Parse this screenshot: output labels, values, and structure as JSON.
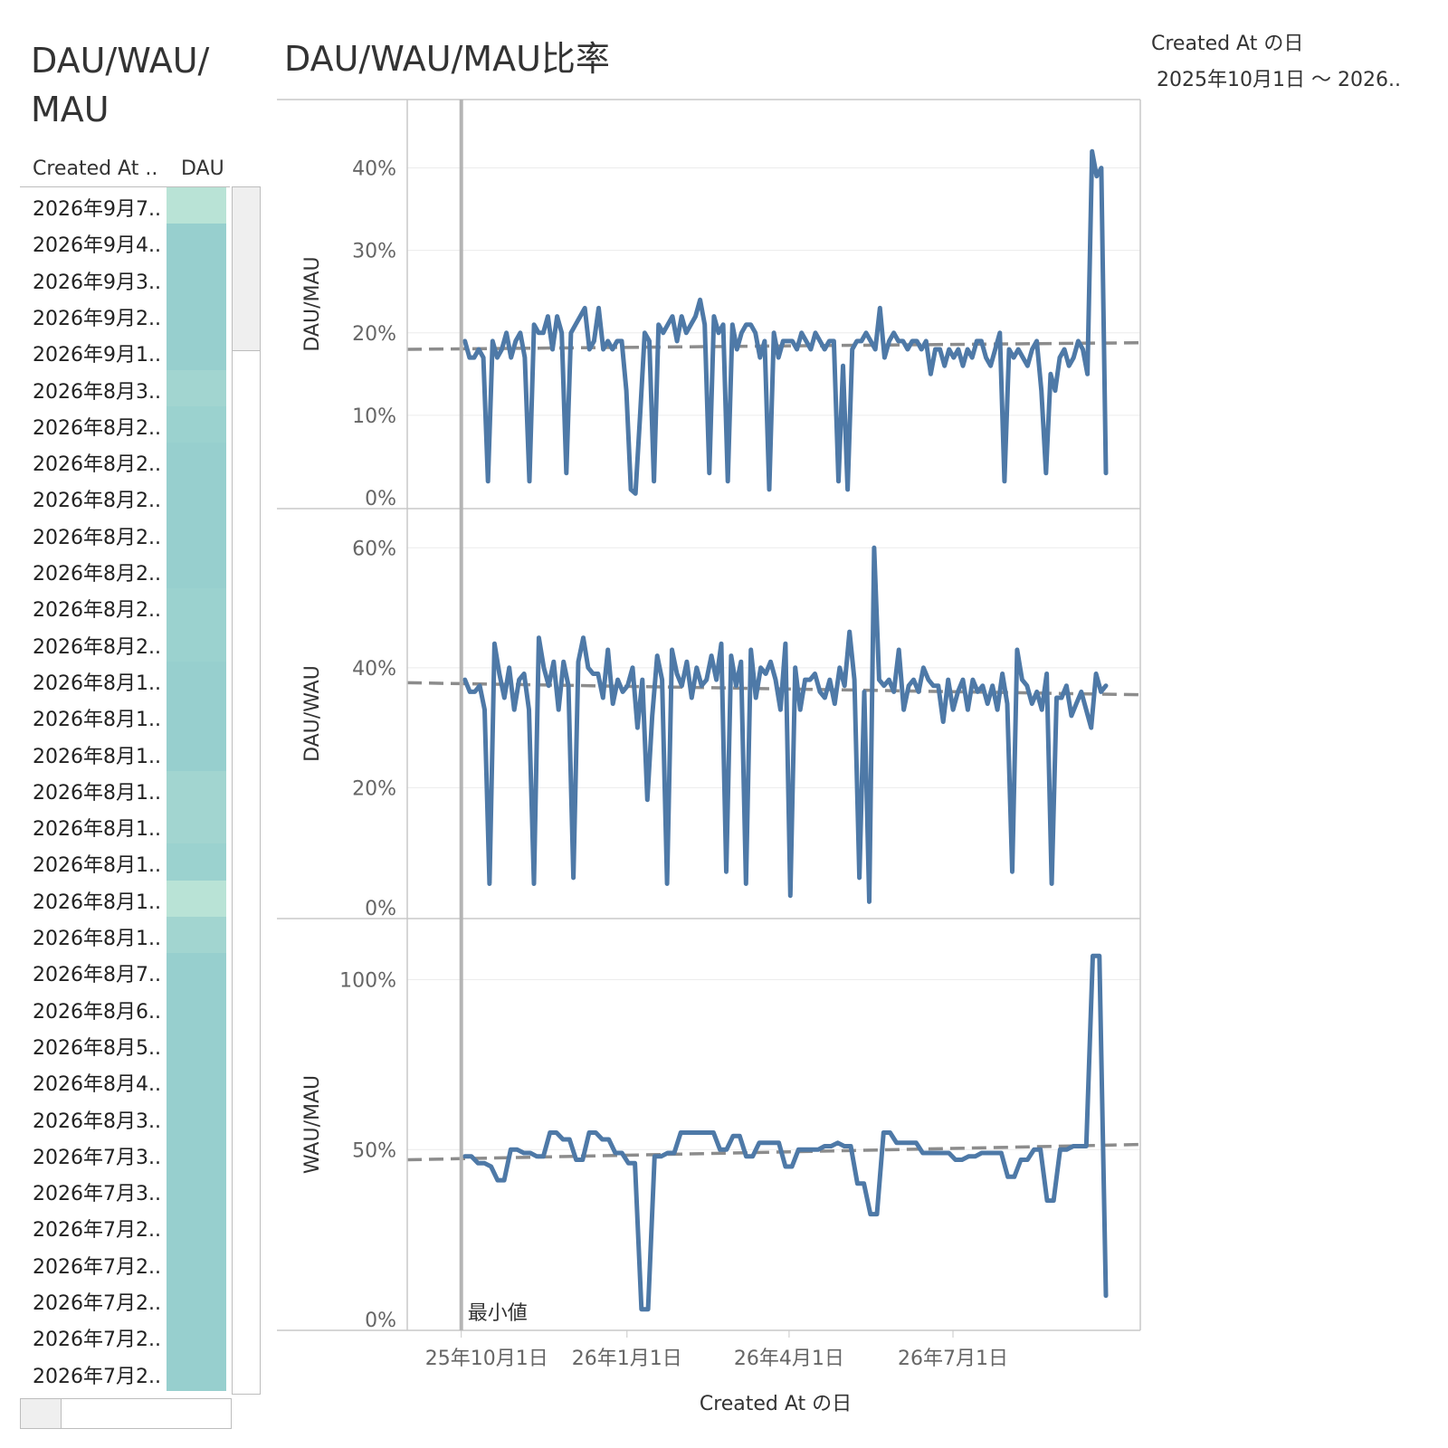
{
  "left_sheet": {
    "title_line1": "DAU/WAU/",
    "title_line2": "MAU",
    "col_date": "Created At ..",
    "col_dau": "DAU",
    "rows": [
      {
        "label": "2026年9月7..",
        "shade": "#b9e3d6"
      },
      {
        "label": "2026年9月4..",
        "shade": "#97cfce"
      },
      {
        "label": "2026年9月3..",
        "shade": "#97cfce"
      },
      {
        "label": "2026年9月2..",
        "shade": "#97cfce"
      },
      {
        "label": "2026年9月1..",
        "shade": "#97cfce"
      },
      {
        "label": "2026年8月3..",
        "shade": "#a2d5d0"
      },
      {
        "label": "2026年8月2..",
        "shade": "#9bd2cf"
      },
      {
        "label": "2026年8月2..",
        "shade": "#97cfce"
      },
      {
        "label": "2026年8月2..",
        "shade": "#97cfce"
      },
      {
        "label": "2026年8月2..",
        "shade": "#97cfce"
      },
      {
        "label": "2026年8月2..",
        "shade": "#97cfce"
      },
      {
        "label": "2026年8月2..",
        "shade": "#9bd2cf"
      },
      {
        "label": "2026年8月2..",
        "shade": "#9bd2cf"
      },
      {
        "label": "2026年8月1..",
        "shade": "#97cfce"
      },
      {
        "label": "2026年8月1..",
        "shade": "#97cfce"
      },
      {
        "label": "2026年8月1..",
        "shade": "#97cfce"
      },
      {
        "label": "2026年8月1..",
        "shade": "#a2d5d0"
      },
      {
        "label": "2026年8月1..",
        "shade": "#a2d5d0"
      },
      {
        "label": "2026年8月1..",
        "shade": "#9bd2cf"
      },
      {
        "label": "2026年8月1..",
        "shade": "#b9e3d6"
      },
      {
        "label": "2026年8月1..",
        "shade": "#a2d5d0"
      },
      {
        "label": "2026年8月7..",
        "shade": "#97cfce"
      },
      {
        "label": "2026年8月6..",
        "shade": "#97cfce"
      },
      {
        "label": "2026年8月5..",
        "shade": "#97cfce"
      },
      {
        "label": "2026年8月4..",
        "shade": "#97cfce"
      },
      {
        "label": "2026年8月3..",
        "shade": "#97cfce"
      },
      {
        "label": "2026年7月3..",
        "shade": "#97cfce"
      },
      {
        "label": "2026年7月3..",
        "shade": "#97cfce"
      },
      {
        "label": "2026年7月2..",
        "shade": "#97cfce"
      },
      {
        "label": "2026年7月2..",
        "shade": "#97cfce"
      },
      {
        "label": "2026年7月2..",
        "shade": "#97cfce"
      },
      {
        "label": "2026年7月2..",
        "shade": "#97cfce"
      },
      {
        "label": "2026年7月2..",
        "shade": "#97cfce"
      }
    ]
  },
  "filter": {
    "title": "Created At の日",
    "value": "2025年10月1日 〜 2026.."
  },
  "chart_data": {
    "type": "line",
    "title": "DAU/WAU/MAU比率",
    "xlabel": "Created At の日",
    "x_ticks": [
      "25年10月1日",
      "26年1月1日",
      "26年4月1日",
      "26年7月1日"
    ],
    "x_range": [
      "2025-09-01",
      "2026-10-13"
    ],
    "line_color": "#4e79a7",
    "trend_color": "#8c8c8c",
    "reference_line": {
      "x": "2025-10-01",
      "label": "最小値"
    },
    "panels": [
      {
        "ylabel": "DAU/MAU",
        "ylim": [
          0,
          0.45
        ],
        "y_ticks": [
          {
            "v": 0,
            "label": "0%"
          },
          {
            "v": 0.1,
            "label": "10%"
          },
          {
            "v": 0.2,
            "label": "20%"
          },
          {
            "v": 0.3,
            "label": "30%"
          },
          {
            "v": 0.4,
            "label": "40%"
          }
        ],
        "trend": [
          0.18,
          0.188
        ],
        "values": [
          0.19,
          0.17,
          0.17,
          0.18,
          0.17,
          0.02,
          0.19,
          0.17,
          0.18,
          0.2,
          0.17,
          0.19,
          0.2,
          0.17,
          0.02,
          0.21,
          0.2,
          0.2,
          0.22,
          0.18,
          0.22,
          0.2,
          0.03,
          0.2,
          0.21,
          0.22,
          0.23,
          0.18,
          0.19,
          0.23,
          0.18,
          0.19,
          0.18,
          0.19,
          0.19,
          0.13,
          0.01,
          0.005,
          0.1,
          0.2,
          0.19,
          0.02,
          0.21,
          0.2,
          0.21,
          0.22,
          0.19,
          0.22,
          0.2,
          0.21,
          0.22,
          0.24,
          0.21,
          0.03,
          0.22,
          0.2,
          0.21,
          0.02,
          0.21,
          0.18,
          0.2,
          0.21,
          0.21,
          0.2,
          0.17,
          0.19,
          0.01,
          0.2,
          0.17,
          0.19,
          0.19,
          0.19,
          0.18,
          0.2,
          0.19,
          0.18,
          0.2,
          0.19,
          0.18,
          0.19,
          0.19,
          0.02,
          0.16,
          0.01,
          0.18,
          0.19,
          0.19,
          0.2,
          0.19,
          0.18,
          0.23,
          0.17,
          0.19,
          0.2,
          0.19,
          0.19,
          0.18,
          0.19,
          0.19,
          0.18,
          0.19,
          0.15,
          0.18,
          0.18,
          0.16,
          0.18,
          0.17,
          0.18,
          0.16,
          0.18,
          0.17,
          0.19,
          0.19,
          0.17,
          0.16,
          0.18,
          0.2,
          0.02,
          0.18,
          0.17,
          0.18,
          0.17,
          0.16,
          0.18,
          0.19,
          0.13,
          0.03,
          0.15,
          0.13,
          0.17,
          0.18,
          0.16,
          0.17,
          0.19,
          0.18,
          0.15,
          0.42,
          0.39,
          0.4,
          0.03
        ]
      },
      {
        "ylabel": "DAU/WAU",
        "ylim": [
          0,
          0.62
        ],
        "y_ticks": [
          {
            "v": 0,
            "label": "0%"
          },
          {
            "v": 0.2,
            "label": "20%"
          },
          {
            "v": 0.4,
            "label": "40%"
          },
          {
            "v": 0.6,
            "label": "60%"
          }
        ],
        "trend": [
          0.375,
          0.355
        ],
        "values": [
          0.38,
          0.36,
          0.36,
          0.37,
          0.33,
          0.04,
          0.44,
          0.39,
          0.35,
          0.4,
          0.33,
          0.38,
          0.39,
          0.33,
          0.04,
          0.45,
          0.4,
          0.37,
          0.41,
          0.33,
          0.41,
          0.37,
          0.05,
          0.41,
          0.45,
          0.4,
          0.39,
          0.39,
          0.35,
          0.43,
          0.34,
          0.38,
          0.36,
          0.37,
          0.4,
          0.3,
          0.38,
          0.18,
          0.32,
          0.42,
          0.38,
          0.04,
          0.43,
          0.39,
          0.37,
          0.41,
          0.35,
          0.4,
          0.37,
          0.38,
          0.42,
          0.38,
          0.44,
          0.06,
          0.42,
          0.37,
          0.41,
          0.04,
          0.43,
          0.35,
          0.4,
          0.39,
          0.41,
          0.38,
          0.33,
          0.44,
          0.02,
          0.4,
          0.33,
          0.38,
          0.38,
          0.39,
          0.36,
          0.35,
          0.38,
          0.34,
          0.4,
          0.37,
          0.46,
          0.38,
          0.05,
          0.36,
          0.01,
          0.6,
          0.38,
          0.37,
          0.38,
          0.36,
          0.43,
          0.33,
          0.37,
          0.38,
          0.36,
          0.4,
          0.38,
          0.37,
          0.37,
          0.31,
          0.38,
          0.33,
          0.36,
          0.38,
          0.33,
          0.38,
          0.36,
          0.37,
          0.34,
          0.37,
          0.33,
          0.39,
          0.34,
          0.06,
          0.43,
          0.38,
          0.37,
          0.34,
          0.36,
          0.33,
          0.39,
          0.04,
          0.35,
          0.35,
          0.37,
          0.32,
          0.34,
          0.36,
          0.33,
          0.3,
          0.39,
          0.36,
          0.37
        ]
      },
      {
        "ylabel": "WAU/MAU",
        "ylim": [
          0,
          1.1
        ],
        "y_ticks": [
          {
            "v": 0,
            "label": "0%"
          },
          {
            "v": 0.5,
            "label": "50%"
          },
          {
            "v": 1.0,
            "label": "100%"
          }
        ],
        "trend": [
          0.47,
          0.515
        ],
        "values": [
          0.48,
          0.48,
          0.46,
          0.46,
          0.45,
          0.41,
          0.41,
          0.5,
          0.5,
          0.49,
          0.49,
          0.48,
          0.48,
          0.55,
          0.55,
          0.53,
          0.53,
          0.47,
          0.47,
          0.55,
          0.55,
          0.53,
          0.53,
          0.49,
          0.49,
          0.46,
          0.46,
          0.03,
          0.03,
          0.48,
          0.48,
          0.49,
          0.49,
          0.55,
          0.55,
          0.55,
          0.55,
          0.55,
          0.55,
          0.5,
          0.5,
          0.54,
          0.54,
          0.48,
          0.48,
          0.52,
          0.52,
          0.52,
          0.52,
          0.45,
          0.45,
          0.5,
          0.5,
          0.5,
          0.5,
          0.51,
          0.51,
          0.52,
          0.51,
          0.51,
          0.4,
          0.4,
          0.31,
          0.31,
          0.55,
          0.55,
          0.52,
          0.52,
          0.52,
          0.52,
          0.49,
          0.49,
          0.49,
          0.49,
          0.49,
          0.47,
          0.47,
          0.48,
          0.48,
          0.49,
          0.49,
          0.49,
          0.49,
          0.42,
          0.42,
          0.47,
          0.47,
          0.5,
          0.5,
          0.35,
          0.35,
          0.5,
          0.5,
          0.51,
          0.51,
          0.51,
          1.07,
          1.07,
          0.07
        ]
      }
    ]
  }
}
